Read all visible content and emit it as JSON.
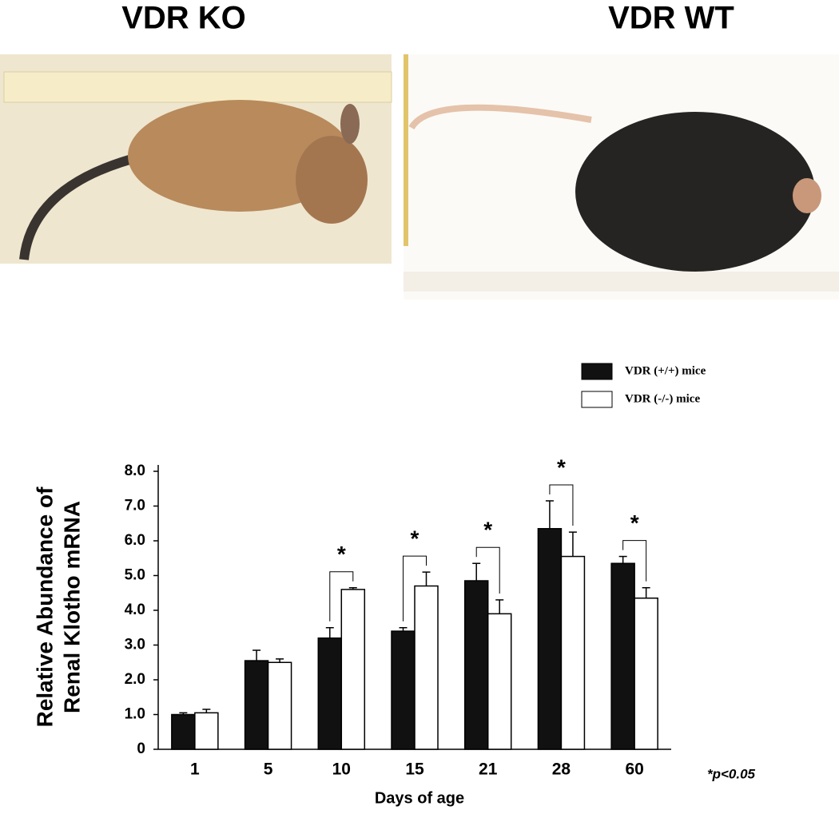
{
  "photos": {
    "left_label": "VDR KO",
    "right_label": "VDR WT"
  },
  "chart_data": {
    "type": "bar",
    "y_label_lines": [
      "Relative Abundance of",
      "Renal Klotho mRNA"
    ],
    "x_label": "Days of age",
    "categories": [
      "1",
      "5",
      "10",
      "15",
      "21",
      "28",
      "60"
    ],
    "series": [
      {
        "name": "VDR (+/+) mice",
        "color": "#111111",
        "values": [
          1.0,
          2.55,
          3.2,
          3.4,
          4.85,
          6.35,
          5.35
        ],
        "errors": [
          0.05,
          0.3,
          0.3,
          0.1,
          0.5,
          0.8,
          0.2
        ]
      },
      {
        "name": "VDR (-/-) mice",
        "color": "#ffffff",
        "values": [
          1.05,
          2.5,
          4.6,
          4.7,
          3.9,
          5.55,
          4.35
        ],
        "errors": [
          0.1,
          0.1,
          0.05,
          0.4,
          0.4,
          0.7,
          0.3
        ]
      }
    ],
    "ylim": [
      0,
      8
    ],
    "yticks": [
      0,
      {
        "value": 1,
        "label": "1.0"
      },
      {
        "value": 2,
        "label": "2.0"
      },
      {
        "value": 3,
        "label": "3.0"
      },
      {
        "value": 4,
        "label": "4.0"
      },
      {
        "value": 5,
        "label": "5.0"
      },
      {
        "value": 6,
        "label": "6.0"
      },
      {
        "value": 7,
        "label": "7.0"
      },
      {
        "value": 8,
        "label": "8.0"
      }
    ],
    "significance_marks": [
      {
        "category": "10",
        "text": "*"
      },
      {
        "category": "15",
        "text": "*"
      },
      {
        "category": "21",
        "text": "*"
      },
      {
        "category": "28",
        "text": "*"
      },
      {
        "category": "60",
        "text": "*"
      }
    ],
    "footnote": "*p<0.05"
  }
}
